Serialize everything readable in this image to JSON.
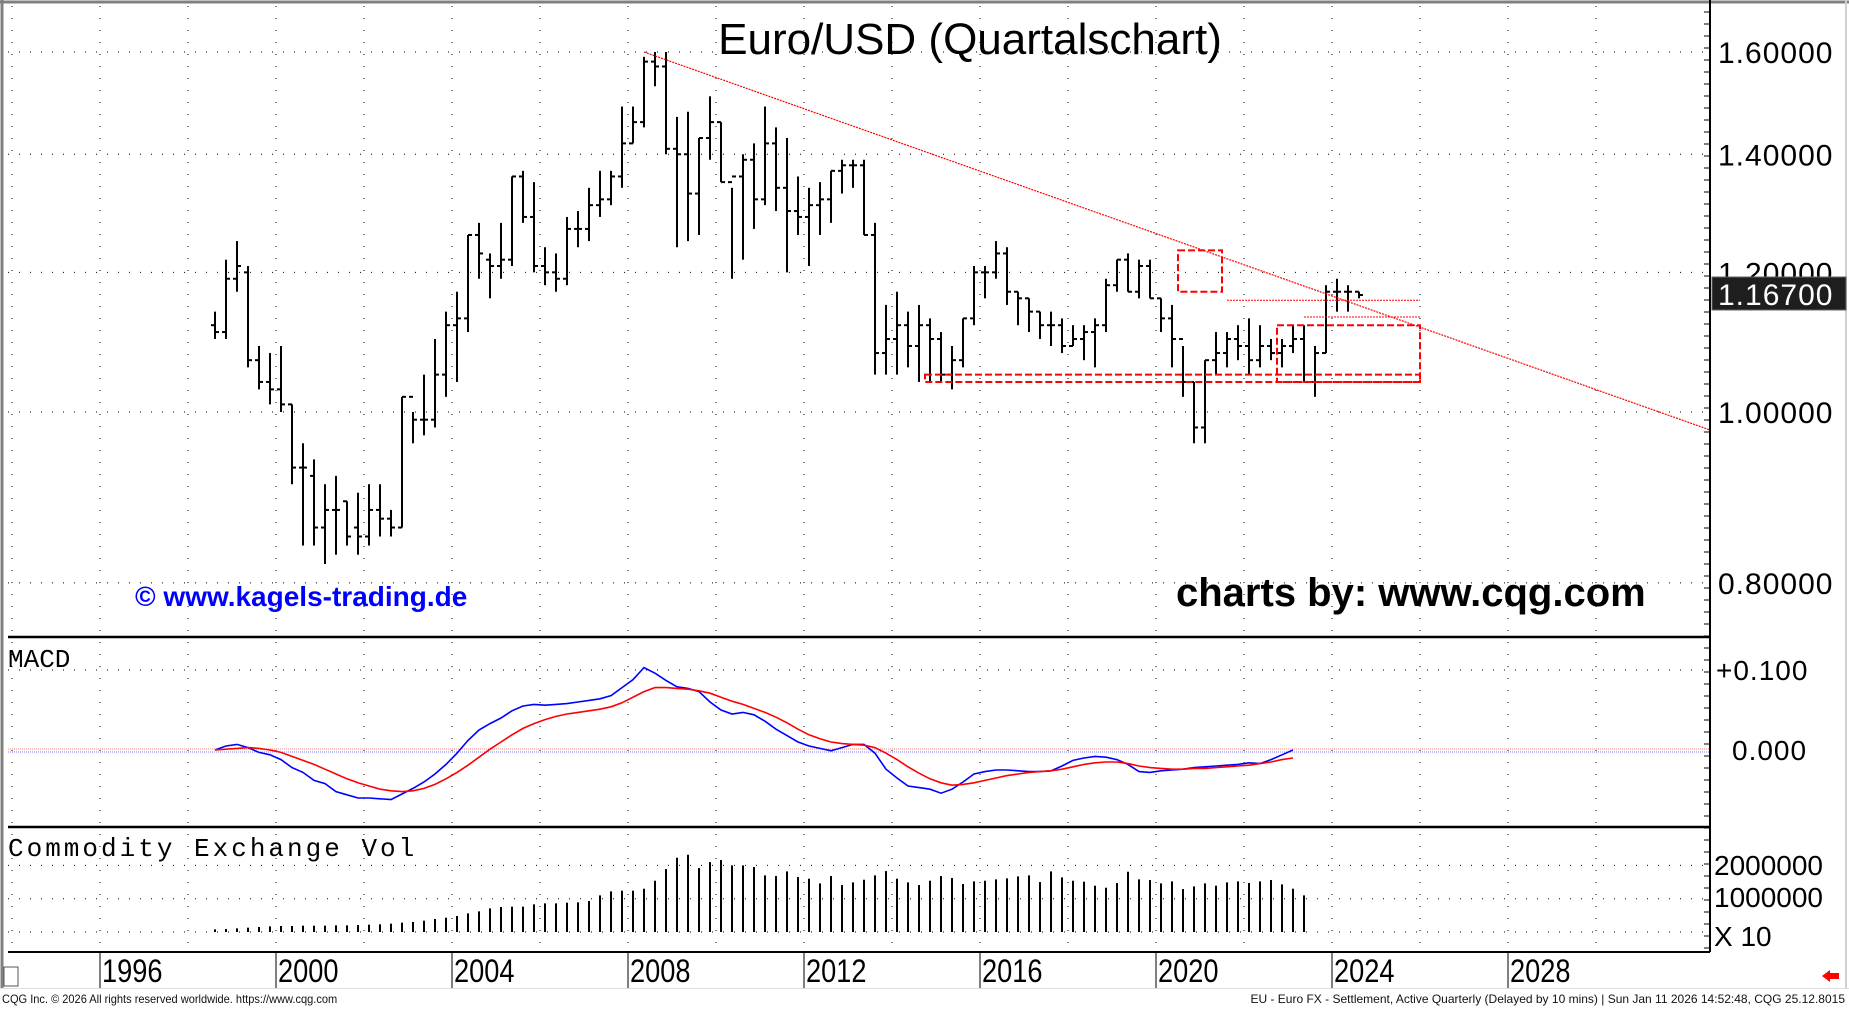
{
  "chart_title": "Euro/USD (Quartalschart)",
  "watermark_left": "© www.kagels-trading.de",
  "watermark_right": "charts by: www.cqg.com",
  "footer": {
    "left": "CQG Inc. © 2026 All rights reserved worldwide. https://www.cqg.com",
    "right": "EU - Euro FX - Settlement, Active Quarterly (Delayed by 10 mins) | Sun Jan 11 2026 14:52:48, CQG 25.12.8015"
  },
  "colors": {
    "bars": "#000000",
    "trendline": "#ff0000",
    "boxes": "#ff0000",
    "macd_line": "#0000ff",
    "signal_line": "#ff0000",
    "watermark_left": "#0000ff",
    "last_price_bg": "#1e1e1e",
    "last_price_fg": "#ffffff"
  },
  "panels": {
    "price": {
      "label": "",
      "ticks": [
        "1.60000",
        "1.40000",
        "1.20000",
        "1.00000",
        "0.80000"
      ],
      "last_price": "1.16700"
    },
    "macd": {
      "label": "MACD",
      "ticks": [
        "+0.100",
        "0.000"
      ]
    },
    "volume": {
      "label": "Commodity Exchange Vol",
      "ticks": [
        "2000000",
        "1000000"
      ],
      "multiplier": "X 10"
    }
  },
  "x_axis": {
    "labels": [
      "1996",
      "2000",
      "2004",
      "2008",
      "2012",
      "2016",
      "2020",
      "2024",
      "2028"
    ]
  },
  "chart_data": [
    {
      "type": "ohlc",
      "title": "Euro/USD (Quartalschart)",
      "xlabel": "",
      "ylabel": "",
      "y_scale": "log",
      "ylim": [
        0.76,
        1.65
      ],
      "x_ticks": [
        "1996",
        "2000",
        "2004",
        "2008",
        "2012",
        "2016",
        "2020",
        "2024",
        "2028"
      ],
      "y_ticks": [
        1.6,
        1.4,
        1.2,
        1.0,
        0.8
      ],
      "last_price": 1.167,
      "start": "1998-Q3",
      "bars_ohlc": [
        [
          1.12,
          1.14,
          1.1,
          1.11
        ],
        [
          1.11,
          1.22,
          1.1,
          1.19
        ],
        [
          1.19,
          1.25,
          1.17,
          1.21
        ],
        [
          1.2,
          1.21,
          1.06,
          1.07
        ],
        [
          1.07,
          1.09,
          1.03,
          1.04
        ],
        [
          1.04,
          1.08,
          1.01,
          1.03
        ],
        [
          1.03,
          1.09,
          1.0,
          1.01
        ],
        [
          1.01,
          1.01,
          0.91,
          0.93
        ],
        [
          0.93,
          0.96,
          0.84,
          0.93
        ],
        [
          0.92,
          0.94,
          0.84,
          0.86
        ],
        [
          0.86,
          0.91,
          0.82,
          0.88
        ],
        [
          0.88,
          0.92,
          0.83,
          0.88
        ],
        [
          0.89,
          0.89,
          0.84,
          0.85
        ],
        [
          0.86,
          0.9,
          0.83,
          0.85
        ],
        [
          0.85,
          0.91,
          0.84,
          0.88
        ],
        [
          0.88,
          0.91,
          0.85,
          0.87
        ],
        [
          0.87,
          0.88,
          0.85,
          0.86
        ],
        [
          0.86,
          1.02,
          0.86,
          1.02
        ],
        [
          1.02,
          1.0,
          0.96,
          0.99
        ],
        [
          0.99,
          1.05,
          0.97,
          0.99
        ],
        [
          0.99,
          1.1,
          0.98,
          1.05
        ],
        [
          1.05,
          1.14,
          1.02,
          1.12
        ],
        [
          1.12,
          1.17,
          1.04,
          1.13
        ],
        [
          1.13,
          1.26,
          1.11,
          1.26
        ],
        [
          1.26,
          1.28,
          1.19,
          1.23
        ],
        [
          1.22,
          1.23,
          1.16,
          1.21
        ],
        [
          1.21,
          1.28,
          1.19,
          1.22
        ],
        [
          1.22,
          1.36,
          1.21,
          1.36
        ],
        [
          1.36,
          1.37,
          1.28,
          1.29
        ],
        [
          1.29,
          1.35,
          1.2,
          1.21
        ],
        [
          1.21,
          1.24,
          1.18,
          1.2
        ],
        [
          1.2,
          1.23,
          1.17,
          1.19
        ],
        [
          1.19,
          1.29,
          1.18,
          1.27
        ],
        [
          1.27,
          1.3,
          1.24,
          1.27
        ],
        [
          1.27,
          1.34,
          1.25,
          1.31
        ],
        [
          1.31,
          1.37,
          1.29,
          1.32
        ],
        [
          1.32,
          1.37,
          1.31,
          1.36
        ],
        [
          1.36,
          1.49,
          1.34,
          1.42
        ],
        [
          1.42,
          1.49,
          1.42,
          1.46
        ],
        [
          1.46,
          1.59,
          1.45,
          1.58
        ],
        [
          1.58,
          1.6,
          1.53,
          1.57
        ],
        [
          1.57,
          1.6,
          1.4,
          1.41
        ],
        [
          1.41,
          1.47,
          1.24,
          1.4
        ],
        [
          1.4,
          1.48,
          1.25,
          1.33
        ],
        [
          1.33,
          1.43,
          1.26,
          1.43
        ],
        [
          1.43,
          1.51,
          1.39,
          1.46
        ],
        [
          1.46,
          1.46,
          1.35,
          1.35
        ],
        [
          1.35,
          1.34,
          1.19,
          1.36
        ],
        [
          1.36,
          1.4,
          1.22,
          1.39
        ],
        [
          1.39,
          1.42,
          1.27,
          1.32
        ],
        [
          1.32,
          1.49,
          1.31,
          1.42
        ],
        [
          1.42,
          1.45,
          1.3,
          1.34
        ],
        [
          1.34,
          1.43,
          1.2,
          1.3
        ],
        [
          1.3,
          1.36,
          1.26,
          1.29
        ],
        [
          1.29,
          1.34,
          1.21,
          1.31
        ],
        [
          1.31,
          1.35,
          1.26,
          1.32
        ],
        [
          1.32,
          1.37,
          1.28,
          1.37
        ],
        [
          1.37,
          1.39,
          1.33,
          1.38
        ],
        [
          1.38,
          1.39,
          1.34,
          1.38
        ],
        [
          1.38,
          1.39,
          1.26,
          1.26
        ],
        [
          1.26,
          1.28,
          1.05,
          1.08
        ],
        [
          1.08,
          1.15,
          1.05,
          1.1
        ],
        [
          1.1,
          1.17,
          1.05,
          1.12
        ],
        [
          1.12,
          1.14,
          1.06,
          1.09
        ],
        [
          1.09,
          1.15,
          1.04,
          1.12
        ],
        [
          1.12,
          1.13,
          1.04,
          1.1
        ],
        [
          1.1,
          1.11,
          1.04,
          1.05
        ],
        [
          1.05,
          1.09,
          1.03,
          1.07
        ],
        [
          1.07,
          1.13,
          1.06,
          1.13
        ],
        [
          1.13,
          1.21,
          1.12,
          1.2
        ],
        [
          1.2,
          1.21,
          1.16,
          1.2
        ],
        [
          1.2,
          1.25,
          1.19,
          1.23
        ],
        [
          1.23,
          1.24,
          1.15,
          1.17
        ],
        [
          1.17,
          1.17,
          1.12,
          1.16
        ],
        [
          1.16,
          1.16,
          1.11,
          1.14
        ],
        [
          1.14,
          1.14,
          1.1,
          1.12
        ],
        [
          1.12,
          1.14,
          1.09,
          1.12
        ],
        [
          1.12,
          1.13,
          1.08,
          1.09
        ],
        [
          1.09,
          1.12,
          1.09,
          1.1
        ],
        [
          1.1,
          1.12,
          1.07,
          1.11
        ],
        [
          1.11,
          1.13,
          1.06,
          1.12
        ],
        [
          1.12,
          1.19,
          1.11,
          1.18
        ],
        [
          1.18,
          1.22,
          1.17,
          1.22
        ],
        [
          1.22,
          1.23,
          1.17,
          1.17
        ],
        [
          1.17,
          1.22,
          1.16,
          1.21
        ],
        [
          1.21,
          1.22,
          1.16,
          1.16
        ],
        [
          1.16,
          1.16,
          1.11,
          1.13
        ],
        [
          1.13,
          1.15,
          1.06,
          1.1
        ],
        [
          1.1,
          1.09,
          1.02,
          1.04
        ],
        [
          1.04,
          1.04,
          0.96,
          0.98
        ],
        [
          0.98,
          1.07,
          0.96,
          1.07
        ],
        [
          1.07,
          1.11,
          1.05,
          1.08
        ],
        [
          1.08,
          1.11,
          1.06,
          1.1
        ],
        [
          1.1,
          1.12,
          1.07,
          1.09
        ],
        [
          1.09,
          1.13,
          1.05,
          1.07
        ],
        [
          1.07,
          1.12,
          1.06,
          1.09
        ],
        [
          1.09,
          1.1,
          1.07,
          1.08
        ],
        [
          1.08,
          1.1,
          1.06,
          1.09
        ],
        [
          1.09,
          1.12,
          1.08,
          1.1
        ],
        [
          1.1,
          1.12,
          1.04,
          1.04
        ],
        [
          1.04,
          1.09,
          1.02,
          1.08
        ],
        [
          1.08,
          1.18,
          1.08,
          1.17
        ],
        [
          1.17,
          1.19,
          1.14,
          1.17
        ],
        [
          1.17,
          1.18,
          1.14,
          1.17
        ],
        [
          1.17,
          1.17,
          1.16,
          1.165
        ]
      ],
      "annotations": [
        {
          "type": "trendline",
          "from": [
            "2008-Q2",
            1.6
          ],
          "to": [
            "2029-Q1",
            0.98
          ],
          "color": "#ff0000",
          "style": "dotted"
        },
        {
          "type": "dashed_box",
          "x_range": [
            "2020-Q3",
            "2021-Q3"
          ],
          "y_range": [
            1.17,
            1.235
          ],
          "color": "#ff0000"
        },
        {
          "type": "dashed_box",
          "x_range": [
            "2022-Q4",
            "2026-Q1"
          ],
          "y_range": [
            1.04,
            1.12
          ],
          "color": "#ff0000"
        },
        {
          "type": "dashed_band",
          "x_range": [
            "2014-Q4",
            "2026-Q1"
          ],
          "y_range": [
            1.04,
            1.05
          ],
          "color": "#ff0000"
        },
        {
          "type": "hline",
          "x_range": [
            "2021-Q3",
            "2026-Q1"
          ],
          "y": 1.157,
          "color": "#ff0000",
          "style": "dotted"
        },
        {
          "type": "hline",
          "x_range": [
            "2023-Q2",
            "2026-Q1"
          ],
          "y": 1.132,
          "color": "#ff0000",
          "style": "dotted"
        }
      ]
    },
    {
      "type": "line",
      "title": "MACD",
      "ylim": [
        -0.1,
        0.14
      ],
      "y_ticks": [
        0.1,
        0.0
      ],
      "start": "1998-Q3",
      "series": [
        {
          "name": "MACD",
          "color": "#0000ff",
          "values": [
            0.0,
            0.005,
            0.007,
            0.003,
            -0.003,
            -0.006,
            -0.012,
            -0.022,
            -0.028,
            -0.038,
            -0.042,
            -0.052,
            -0.056,
            -0.06,
            -0.06,
            -0.061,
            -0.062,
            -0.055,
            -0.048,
            -0.04,
            -0.03,
            -0.018,
            -0.004,
            0.012,
            0.025,
            0.033,
            0.04,
            0.049,
            0.055,
            0.057,
            0.056,
            0.057,
            0.058,
            0.06,
            0.062,
            0.064,
            0.068,
            0.078,
            0.088,
            0.103,
            0.096,
            0.087,
            0.079,
            0.077,
            0.073,
            0.06,
            0.05,
            0.045,
            0.047,
            0.044,
            0.036,
            0.026,
            0.018,
            0.01,
            0.005,
            0.002,
            -0.001,
            0.003,
            0.007,
            0.007,
            -0.004,
            -0.024,
            -0.035,
            -0.045,
            -0.047,
            -0.049,
            -0.054,
            -0.049,
            -0.04,
            -0.03,
            -0.027,
            -0.025,
            -0.025,
            -0.026,
            -0.027,
            -0.027,
            -0.026,
            -0.02,
            -0.013,
            -0.01,
            -0.008,
            -0.009,
            -0.012,
            -0.018,
            -0.027,
            -0.028,
            -0.026,
            -0.025,
            -0.024,
            -0.022,
            -0.021,
            -0.02,
            -0.019,
            -0.018,
            -0.016,
            -0.017,
            -0.012,
            -0.006,
            0.0
          ]
        },
        {
          "name": "Signal",
          "color": "#ff0000",
          "values": [
            0.0,
            0.001,
            0.002,
            0.003,
            0.002,
            0.0,
            -0.003,
            -0.008,
            -0.013,
            -0.018,
            -0.024,
            -0.03,
            -0.036,
            -0.041,
            -0.045,
            -0.049,
            -0.051,
            -0.052,
            -0.051,
            -0.048,
            -0.043,
            -0.036,
            -0.028,
            -0.019,
            -0.009,
            0.001,
            0.01,
            0.019,
            0.027,
            0.033,
            0.038,
            0.042,
            0.045,
            0.047,
            0.049,
            0.051,
            0.054,
            0.059,
            0.066,
            0.073,
            0.078,
            0.078,
            0.077,
            0.076,
            0.074,
            0.071,
            0.066,
            0.061,
            0.057,
            0.052,
            0.047,
            0.041,
            0.034,
            0.026,
            0.019,
            0.014,
            0.01,
            0.008,
            0.007,
            0.006,
            0.003,
            -0.004,
            -0.012,
            -0.021,
            -0.029,
            -0.036,
            -0.041,
            -0.044,
            -0.043,
            -0.041,
            -0.038,
            -0.035,
            -0.032,
            -0.03,
            -0.028,
            -0.027,
            -0.026,
            -0.024,
            -0.021,
            -0.018,
            -0.016,
            -0.015,
            -0.015,
            -0.017,
            -0.02,
            -0.022,
            -0.023,
            -0.024,
            -0.024,
            -0.023,
            -0.023,
            -0.022,
            -0.021,
            -0.02,
            -0.019,
            -0.017,
            -0.015,
            -0.012,
            -0.01
          ]
        }
      ]
    },
    {
      "type": "bar",
      "title": "Commodity Exchange Vol",
      "ylabel": "X 10",
      "y_ticks": [
        2000000,
        1000000
      ],
      "start": "1998-Q3",
      "values": [
        80000,
        90000,
        110000,
        130000,
        150000,
        170000,
        180000,
        180000,
        190000,
        190000,
        190000,
        200000,
        200000,
        210000,
        220000,
        230000,
        250000,
        280000,
        300000,
        340000,
        390000,
        430000,
        480000,
        560000,
        620000,
        710000,
        750000,
        760000,
        760000,
        830000,
        860000,
        860000,
        880000,
        890000,
        930000,
        1100000,
        1220000,
        1240000,
        1240000,
        1300000,
        1540000,
        1890000,
        2230000,
        2320000,
        1920000,
        2100000,
        2160000,
        2000000,
        2000000,
        1950000,
        1700000,
        1680000,
        1820000,
        1650000,
        1600000,
        1460000,
        1680000,
        1410000,
        1490000,
        1570000,
        1700000,
        1830000,
        1600000,
        1490000,
        1410000,
        1540000,
        1680000,
        1620000,
        1440000,
        1520000,
        1540000,
        1580000,
        1610000,
        1670000,
        1700000,
        1500000,
        1820000,
        1640000,
        1540000,
        1510000,
        1390000,
        1330000,
        1470000,
        1810000,
        1580000,
        1560000,
        1460000,
        1520000,
        1290000,
        1370000,
        1460000,
        1390000,
        1490000,
        1520000,
        1470000,
        1520000,
        1560000,
        1430000,
        1300000,
        1100000
      ]
    }
  ]
}
